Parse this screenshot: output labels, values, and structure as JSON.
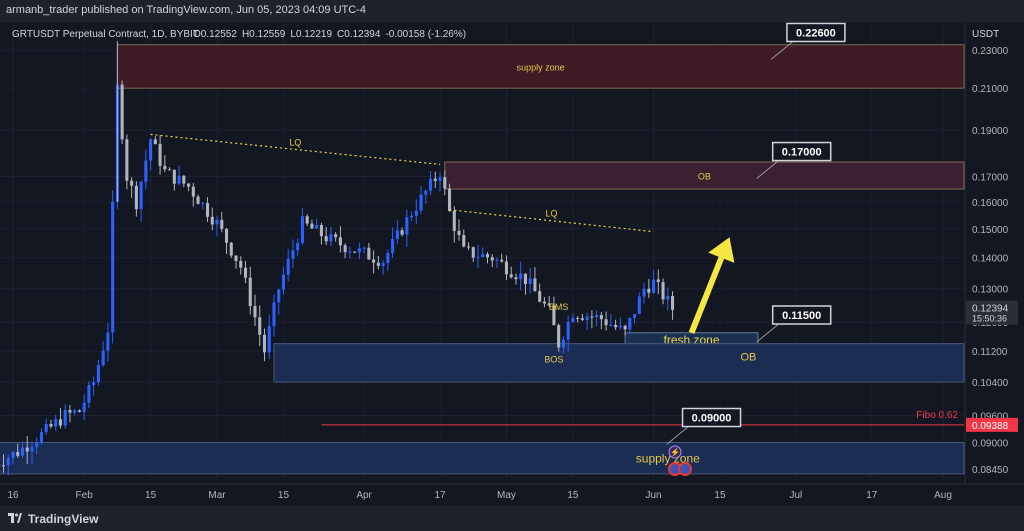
{
  "header": {
    "publish_text": "armanb_trader published on TradingView.com, Jun 05, 2023 04:09 UTC-4",
    "symbol_text": "GRTUSDT Perpetual Contract, 1D, BYBIT",
    "ohlc": [
      {
        "k": "O",
        "v": "0.12552"
      },
      {
        "k": "H",
        "v": "0.12559"
      },
      {
        "k": "L",
        "v": "0.12219"
      },
      {
        "k": "C",
        "v": "0.12394"
      }
    ],
    "change": "-0.00158 (-1.26%)",
    "currency": "USDT"
  },
  "footer": {
    "brand": "TradingView"
  },
  "colors": {
    "bg": "#131722",
    "up": "#2962ff",
    "down": "#b2b5be",
    "demand": "#1d3a6e",
    "supply": "#4a1a22",
    "fibo": "#f23645",
    "accent": "#f0d74a"
  },
  "chart_data": {
    "type": "candlestick",
    "log_scale": true,
    "ylim": [
      0.0815,
      0.246
    ],
    "y_ticks": [
      "0.23000",
      "0.21000",
      "0.19000",
      "0.17000",
      "0.16000",
      "0.15000",
      "0.14000",
      "0.13000",
      "0.12000",
      "0.11200",
      "0.10400",
      "0.09600",
      "0.09000",
      "0.08450"
    ],
    "x_ticks": [
      {
        "label": "16",
        "day": -15
      },
      {
        "label": "Feb",
        "day": 0
      },
      {
        "label": "15",
        "day": 14
      },
      {
        "label": "Mar",
        "day": 28
      },
      {
        "label": "15",
        "day": 42
      },
      {
        "label": "Apr",
        "day": 59
      },
      {
        "label": "17",
        "day": 75
      },
      {
        "label": "May",
        "day": 89
      },
      {
        "label": "15",
        "day": 103
      },
      {
        "label": "Jun",
        "day": 120
      },
      {
        "label": "15",
        "day": 134
      },
      {
        "label": "Jul",
        "day": 150
      },
      {
        "label": "17",
        "day": 166
      },
      {
        "label": "Aug",
        "day": 181
      }
    ],
    "candle_path": [
      {
        "day": -20,
        "close": 0.085
      },
      {
        "day": -14,
        "close": 0.088
      },
      {
        "day": -8,
        "close": 0.0925
      },
      {
        "day": -4,
        "close": 0.096
      },
      {
        "day": -1,
        "close": 0.097
      },
      {
        "day": 2,
        "close": 0.104
      },
      {
        "day": 5,
        "close": 0.118
      },
      {
        "day": 7,
        "close": 0.21
      },
      {
        "day": 9,
        "close": 0.17
      },
      {
        "day": 11,
        "close": 0.16
      },
      {
        "day": 14,
        "close": 0.186
      },
      {
        "day": 17,
        "close": 0.172
      },
      {
        "day": 22,
        "close": 0.166
      },
      {
        "day": 28,
        "close": 0.152
      },
      {
        "day": 33,
        "close": 0.137
      },
      {
        "day": 38,
        "close": 0.112
      },
      {
        "day": 41,
        "close": 0.13
      },
      {
        "day": 46,
        "close": 0.152
      },
      {
        "day": 52,
        "close": 0.146
      },
      {
        "day": 58,
        "close": 0.142
      },
      {
        "day": 63,
        "close": 0.139
      },
      {
        "day": 69,
        "close": 0.156
      },
      {
        "day": 75,
        "close": 0.172
      },
      {
        "day": 77,
        "close": 0.156
      },
      {
        "day": 80,
        "close": 0.142
      },
      {
        "day": 86,
        "close": 0.14
      },
      {
        "day": 93,
        "close": 0.133
      },
      {
        "day": 98,
        "close": 0.123
      },
      {
        "day": 100,
        "close": 0.114
      },
      {
        "day": 103,
        "close": 0.123
      },
      {
        "day": 109,
        "close": 0.121
      },
      {
        "day": 114,
        "close": 0.117
      },
      {
        "day": 118,
        "close": 0.13
      },
      {
        "day": 120,
        "close": 0.132
      },
      {
        "day": 124,
        "close": 0.124
      }
    ],
    "last_price": "0.12394",
    "countdown": "15:50:36",
    "zones": [
      {
        "kind": "supply",
        "label": "supply zone",
        "day_from": 7,
        "day_to": null,
        "top": 0.233,
        "bottom": 0.21
      },
      {
        "kind": "ob_supply",
        "label": "OB",
        "day_from": 76,
        "day_to": null,
        "top": 0.176,
        "bottom": 0.165
      },
      {
        "kind": "fresh",
        "label": "fresh zone",
        "day_from": 114,
        "day_to": 142,
        "top": 0.117,
        "bottom": 0.113
      },
      {
        "kind": "ob_demand",
        "label": "OB",
        "day_from": 40,
        "day_to": null,
        "top": 0.114,
        "bottom": 0.104
      },
      {
        "kind": "demand_low",
        "label": "supply zone",
        "day_from": -20,
        "day_to": null,
        "top": 0.09,
        "bottom": 0.0835
      }
    ],
    "trendlines": [
      {
        "label": "LQ",
        "from": {
          "day": 14,
          "price": 0.188
        },
        "to": {
          "day": 75,
          "price": 0.175
        }
      },
      {
        "label": "LQ",
        "from": {
          "day": 77,
          "price": 0.157
        },
        "to": {
          "day": 120,
          "price": 0.149
        }
      }
    ],
    "structure_labels": [
      {
        "text": "BMS",
        "day": 100,
        "price": 0.1235
      },
      {
        "text": "BOS",
        "day": 99,
        "price": 0.109
      }
    ],
    "fibo": {
      "label": "Fibo 0.62",
      "price": 0.09388,
      "price_text": "0.09388"
    },
    "callouts": [
      {
        "text": "0.22600",
        "day": 146,
        "price": 0.226
      },
      {
        "text": "0.17000",
        "day": 143,
        "price": 0.17
      },
      {
        "text": "0.11500",
        "day": 143,
        "price": 0.115
      },
      {
        "text": "0.09000",
        "day": 124,
        "price": 0.09
      }
    ],
    "arrow": {
      "from": {
        "day": 128,
        "price": 0.117
      },
      "to": {
        "day": 136,
        "price": 0.147
      }
    }
  }
}
